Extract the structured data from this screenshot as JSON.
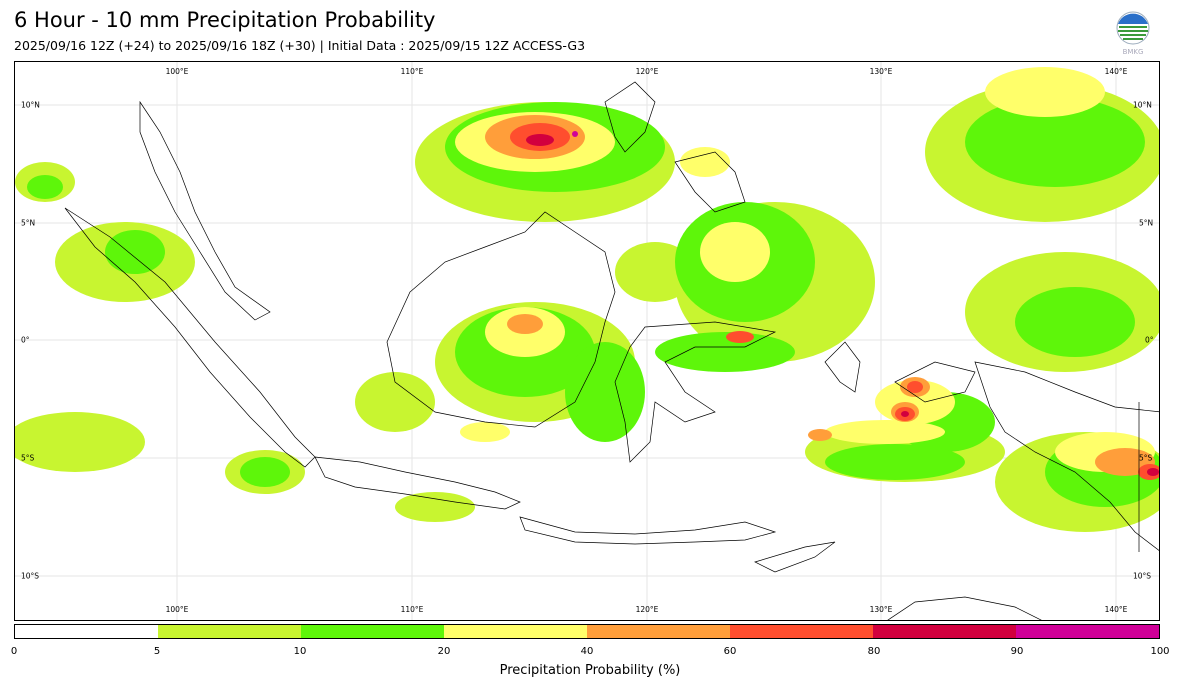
{
  "header": {
    "title": "6 Hour - 10 mm Precipitation Probability",
    "subtitle": "2025/09/16 12Z (+24) to 2025/09/16 18Z (+30) | Initial Data : 2025/09/15 12Z ACCESS-G3"
  },
  "logo": {
    "icon": "bmkg-logo-icon",
    "text": "BMKG"
  },
  "map": {
    "region": "Indonesia / Maritime Continent",
    "lon_range": [
      93,
      141
    ],
    "lat_range": [
      -12,
      12
    ],
    "grid": true,
    "lon_ticks": [
      "100°E",
      "110°E",
      "120°E",
      "130°E",
      "140°E"
    ],
    "lat_ticks": [
      "10°N",
      "5°N",
      "0°",
      "5°S",
      "10°S"
    ]
  },
  "colorbar": {
    "ticks": [
      "0",
      "5",
      "10",
      "20",
      "40",
      "60",
      "80",
      "90",
      "100"
    ],
    "colors": [
      "#ffffff",
      "#c8f530",
      "#5ef60a",
      "#ffff6a",
      "#ff9e3a",
      "#ff4e2e",
      "#d2003e",
      "#d00098"
    ],
    "label": "Precipitation Probability (%)"
  }
}
